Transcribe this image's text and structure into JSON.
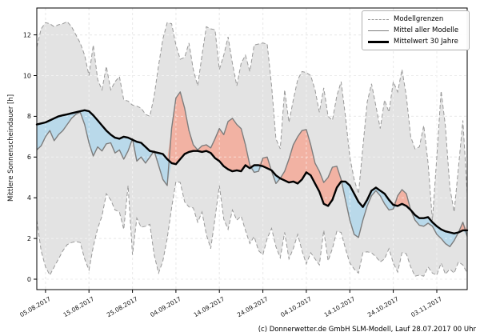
{
  "figure": {
    "caption": "(c) Donnerwetter.de GmbH SLM-Modell, Lauf 28.07.2017 00 Uhr"
  },
  "legend": {
    "items": [
      {
        "label": "Modellgrenzen",
        "style": "dashed-gray-line"
      },
      {
        "label": "Mittel aller Modelle",
        "style": "solid-gray-line"
      },
      {
        "label": "Mittelwert 30 Jahre",
        "style": "thick-black-line"
      }
    ]
  },
  "chart_data": {
    "type": "line",
    "title": "",
    "xlabel": "",
    "ylabel": "Mittlere Sonnenscheindauer [h]",
    "ylim": [
      -0.51,
      13.32
    ],
    "y_ticks": [
      0,
      2,
      4,
      6,
      8,
      10,
      12
    ],
    "x_tick_labels": [
      "05.08.2017",
      "15.08.2017",
      "25.08.2017",
      "04.09.2017",
      "14.09.2017",
      "24.09.2017",
      "04.10.2017",
      "14.10.2017",
      "24.10.2017",
      "03.11.2017"
    ],
    "x_tick_positions": [
      2,
      12,
      22,
      32,
      42,
      52,
      62,
      72,
      82,
      92
    ],
    "grid": true,
    "legend_position": "top-right",
    "colors": {
      "band": "#e3e3e3",
      "below": "#b9d9ea",
      "above": "#f2b2a3",
      "bounds": "#999999",
      "model_mean": "#7d7d7d",
      "mean_30y": "#000000",
      "grid_under": "#d4d4d4",
      "grid_over": "rgba(255,255,255,0.55)"
    },
    "series": [
      {
        "name": "Modellgrenze oben",
        "role": "upper_bound",
        "values": [
          11.4,
          12.3,
          12.6,
          12.55,
          12.4,
          12.5,
          12.55,
          12.65,
          12.4,
          12.0,
          11.6,
          11.0,
          10.0,
          11.5,
          9.8,
          9.3,
          10.45,
          9.3,
          9.7,
          9.95,
          8.8,
          8.75,
          8.55,
          8.5,
          8.4,
          8.1,
          8.0,
          9.0,
          10.5,
          11.8,
          12.6,
          12.55,
          11.5,
          10.8,
          10.9,
          11.6,
          10.3,
          9.5,
          11.0,
          12.4,
          12.3,
          12.25,
          10.3,
          11.0,
          11.9,
          10.6,
          9.5,
          10.6,
          11.0,
          10.2,
          11.5,
          11.55,
          11.6,
          11.55,
          9.5,
          6.9,
          6.4,
          9.3,
          7.7,
          8.8,
          9.8,
          10.2,
          10.15,
          10.0,
          9.3,
          8.2,
          9.4,
          8.0,
          7.8,
          9.0,
          9.7,
          8.0,
          6.0,
          4.9,
          4.2,
          6.5,
          8.7,
          9.6,
          8.5,
          7.4,
          8.8,
          8.2,
          9.7,
          9.2,
          10.3,
          9.0,
          7.0,
          6.4,
          6.5,
          7.55,
          5.7,
          2.9,
          6.0,
          9.25,
          7.5,
          4.5,
          3.3,
          5.5,
          7.8,
          4.2
        ]
      },
      {
        "name": "Modellgrenze unten",
        "role": "lower_bound",
        "values": [
          2.9,
          1.4,
          0.6,
          0.2,
          0.6,
          1.0,
          1.4,
          1.7,
          1.8,
          1.85,
          1.8,
          1.0,
          0.45,
          1.6,
          2.5,
          3.1,
          4.2,
          3.9,
          3.4,
          3.3,
          2.45,
          4.6,
          1.2,
          3.0,
          2.55,
          2.6,
          2.7,
          1.2,
          0.3,
          0.9,
          2.0,
          3.5,
          4.8,
          4.75,
          3.8,
          3.55,
          3.5,
          2.8,
          3.3,
          2.2,
          1.5,
          3.0,
          4.6,
          2.95,
          2.45,
          3.4,
          2.9,
          3.1,
          2.4,
          1.75,
          2.1,
          1.4,
          1.2,
          2.0,
          2.5,
          1.6,
          1.05,
          2.3,
          1.0,
          1.5,
          2.2,
          1.4,
          0.75,
          1.3,
          1.0,
          0.7,
          2.4,
          0.9,
          1.5,
          2.35,
          2.3,
          1.5,
          0.8,
          0.5,
          0.3,
          1.3,
          1.35,
          1.3,
          1.1,
          0.85,
          1.0,
          1.5,
          0.8,
          0.35,
          1.3,
          1.25,
          0.6,
          0.15,
          0.2,
          0.15,
          0.6,
          0.3,
          0.2,
          0.8,
          0.25,
          0.5,
          0.3,
          0.85,
          0.7,
          0.3
        ]
      },
      {
        "name": "Mittel aller Modelle",
        "role": "model_mean",
        "values": [
          6.35,
          6.55,
          7.0,
          7.3,
          6.8,
          7.1,
          7.3,
          7.6,
          7.9,
          8.1,
          8.2,
          7.6,
          6.7,
          6.05,
          6.5,
          6.3,
          6.65,
          6.7,
          6.2,
          6.35,
          5.9,
          6.3,
          6.9,
          5.8,
          6.0,
          5.7,
          6.0,
          6.3,
          5.6,
          4.9,
          4.6,
          7.4,
          8.9,
          9.2,
          8.4,
          7.3,
          6.6,
          6.35,
          6.55,
          6.6,
          6.45,
          6.9,
          7.4,
          7.1,
          7.75,
          7.9,
          7.6,
          7.4,
          6.6,
          5.6,
          5.25,
          5.3,
          5.95,
          6.0,
          5.3,
          4.7,
          4.95,
          5.3,
          5.9,
          6.6,
          7.0,
          7.3,
          7.35,
          6.6,
          5.7,
          5.3,
          4.75,
          5.0,
          5.5,
          5.55,
          4.9,
          3.9,
          2.9,
          2.2,
          2.05,
          2.9,
          3.6,
          4.1,
          4.35,
          4.1,
          3.7,
          3.4,
          3.45,
          4.1,
          4.4,
          4.2,
          3.4,
          2.9,
          2.65,
          2.6,
          2.75,
          2.6,
          2.2,
          2.0,
          1.75,
          1.6,
          1.9,
          2.3,
          2.8,
          2.1
        ]
      },
      {
        "name": "Mittelwert 30 Jahre",
        "role": "mean_30y",
        "values": [
          7.6,
          7.65,
          7.7,
          7.8,
          7.9,
          8.0,
          8.05,
          8.1,
          8.15,
          8.2,
          8.25,
          8.3,
          8.25,
          8.05,
          7.8,
          7.55,
          7.3,
          7.1,
          6.95,
          6.9,
          7.0,
          6.95,
          6.85,
          6.75,
          6.7,
          6.5,
          6.3,
          6.25,
          6.2,
          6.15,
          5.9,
          5.7,
          5.65,
          5.9,
          6.15,
          6.25,
          6.3,
          6.3,
          6.25,
          6.3,
          6.2,
          5.95,
          5.8,
          5.55,
          5.4,
          5.3,
          5.35,
          5.3,
          5.6,
          5.45,
          5.6,
          5.6,
          5.55,
          5.45,
          5.35,
          5.1,
          4.95,
          4.85,
          4.75,
          4.8,
          4.7,
          4.9,
          5.25,
          5.1,
          4.7,
          4.3,
          3.7,
          3.6,
          3.9,
          4.5,
          4.8,
          4.8,
          4.6,
          4.2,
          3.8,
          3.55,
          3.9,
          4.35,
          4.5,
          4.35,
          4.2,
          3.9,
          3.65,
          3.6,
          3.7,
          3.6,
          3.4,
          3.15,
          3.0,
          3.0,
          3.05,
          2.8,
          2.6,
          2.45,
          2.35,
          2.3,
          2.25,
          2.3,
          2.4,
          2.4
        ]
      }
    ]
  }
}
